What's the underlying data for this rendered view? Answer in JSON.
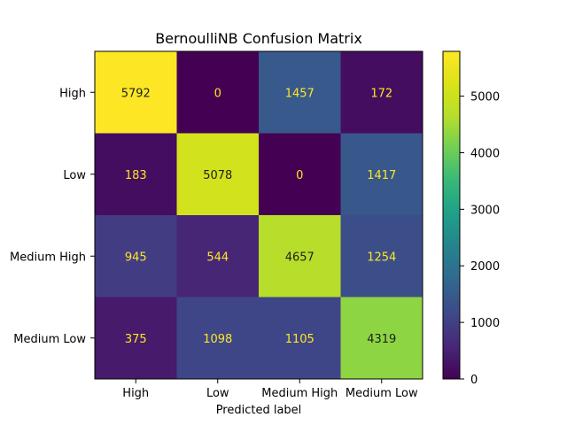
{
  "chart_data": {
    "type": "heatmap",
    "title": "BernoulliNB Confusion Matrix",
    "xlabel": "Predicted label",
    "ylabel": "",
    "x_categories": [
      "High",
      "Low",
      "Medium High",
      "Medium Low"
    ],
    "y_categories": [
      "High",
      "Low",
      "Medium High",
      "Medium Low"
    ],
    "values": [
      [
        5792,
        0,
        1457,
        172
      ],
      [
        183,
        5078,
        0,
        1417
      ],
      [
        945,
        544,
        4657,
        1254
      ],
      [
        375,
        1098,
        1105,
        4319
      ]
    ],
    "colormap": "viridis",
    "vmin": 0,
    "vmax": 5792,
    "colorbar_ticks": [
      "0",
      "1000",
      "2000",
      "3000",
      "4000",
      "5000"
    ],
    "label_colors": {
      "light": "#fde725",
      "dark": "#1f1f1f"
    }
  }
}
